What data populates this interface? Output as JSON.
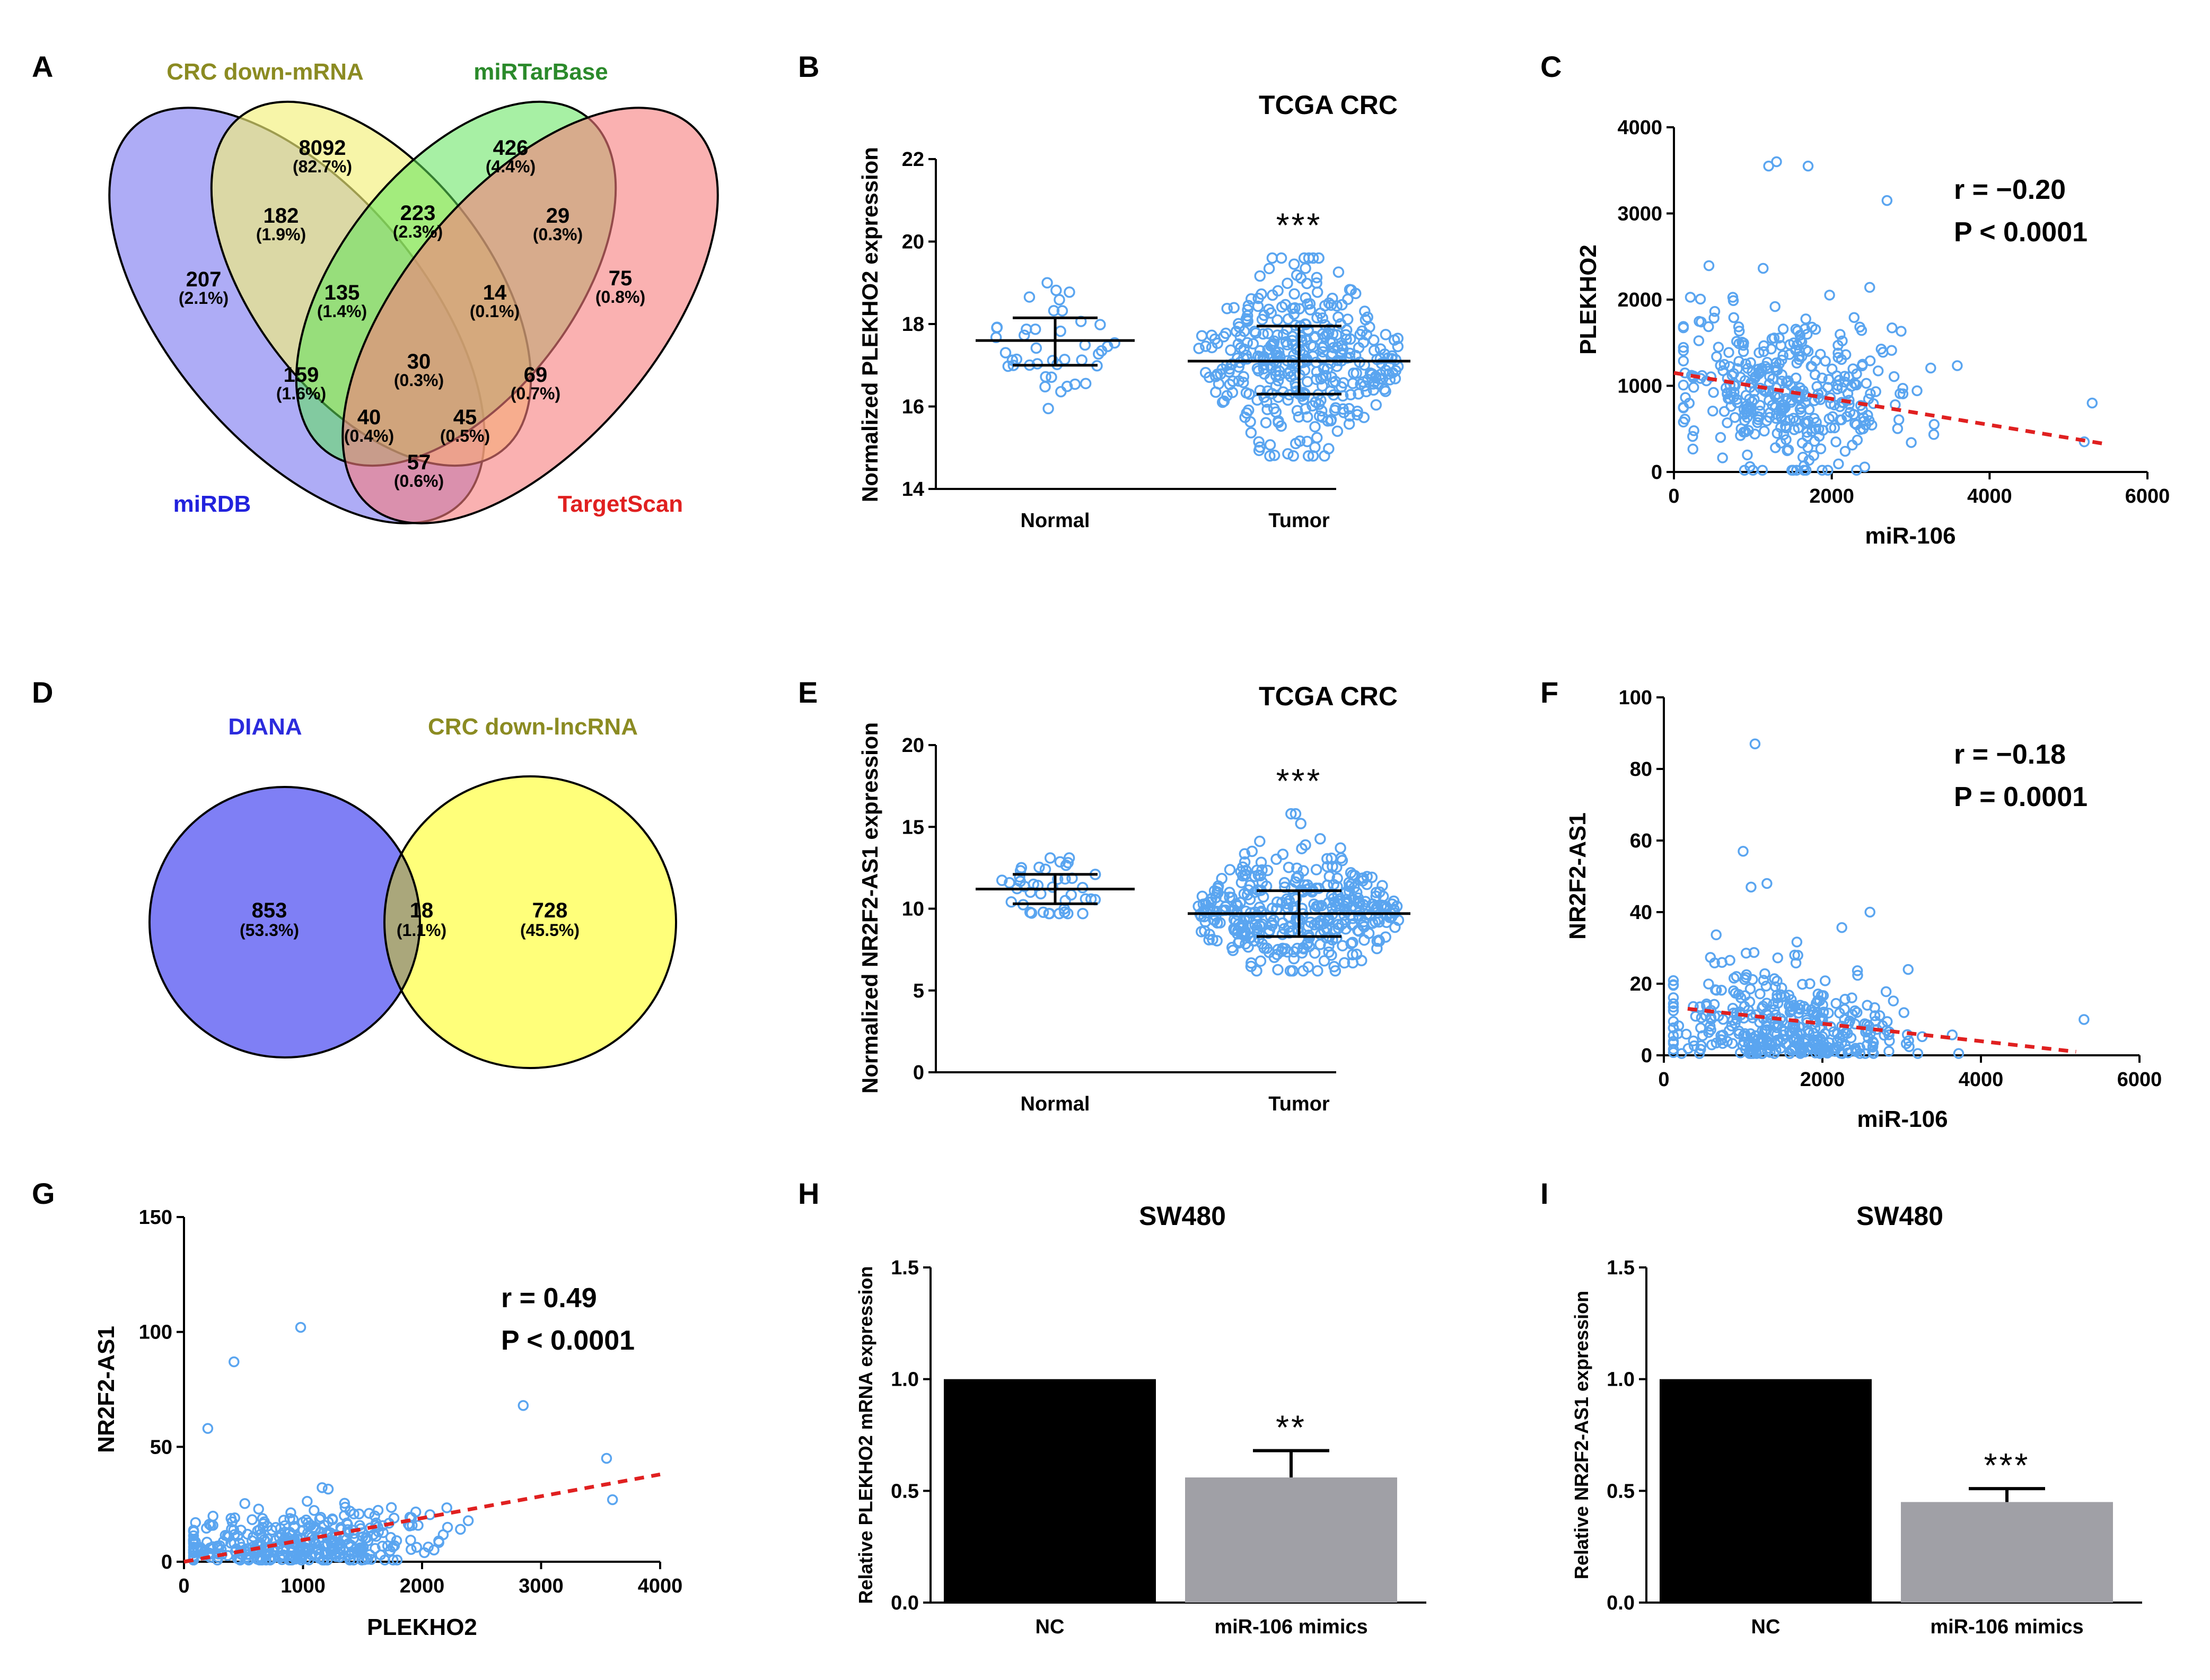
{
  "panels": {
    "A": {
      "label": "A",
      "sets": {
        "crc": "CRC down-mRNA",
        "mirtar": "miRTarBase",
        "mirdb": "miRDB",
        "targetscan": "TargetScan"
      },
      "colors": {
        "crc": "#f2f07a",
        "mirtar": "#5fe35a",
        "mirdb": "#8f8cf2",
        "targetscan": "#f77d7d",
        "crc_label": "#8b8b22",
        "mirtar_label": "#2b8a2b",
        "mirdb_label": "#2222dd",
        "targetscan_label": "#e02020"
      },
      "regions": [
        {
          "key": "crc_only",
          "n": "8092",
          "p": "(82.7%)"
        },
        {
          "key": "mirtar_only",
          "n": "426",
          "p": "(4.4%)"
        },
        {
          "key": "mirdb_only",
          "n": "207",
          "p": "(2.1%)"
        },
        {
          "key": "ts_only",
          "n": "75",
          "p": "(0.8%)"
        },
        {
          "key": "crc_mirdb",
          "n": "182",
          "p": "(1.9%)"
        },
        {
          "key": "crc_mirtar",
          "n": "223",
          "p": "(2.3%)"
        },
        {
          "key": "mirtar_ts",
          "n": "29",
          "p": "(0.3%)"
        },
        {
          "key": "crc_mirtar_mirdb",
          "n": "135",
          "p": "(1.4%)"
        },
        {
          "key": "crc_mirtar_ts",
          "n": "14",
          "p": "(0.1%)"
        },
        {
          "key": "all_four",
          "n": "30",
          "p": "(0.3%)"
        },
        {
          "key": "mirtar_mirdb",
          "n": "159",
          "p": "(1.6%)"
        },
        {
          "key": "crc_ts",
          "n": "69",
          "p": "(0.7%)"
        },
        {
          "key": "mirtar_mirdb_ts",
          "n": "40",
          "p": "(0.4%)"
        },
        {
          "key": "crc_mirdb_ts",
          "n": "45",
          "p": "(0.5%)"
        },
        {
          "key": "mirdb_ts",
          "n": "57",
          "p": "(0.6%)"
        }
      ]
    },
    "D": {
      "label": "D",
      "sets": {
        "diana": "DIANA",
        "lnc": "CRC down-lncRNA"
      },
      "colors": {
        "diana": "#7f7ff5",
        "lnc": "#ffff7a",
        "overlap": "#aaa77b",
        "diana_label": "#2b2bdd",
        "lnc_label": "#8b8b22"
      },
      "regions": [
        {
          "key": "diana_only",
          "n": "853",
          "p": "(53.3%)"
        },
        {
          "key": "both",
          "n": "18",
          "p": "(1.1%)"
        },
        {
          "key": "lnc_only",
          "n": "728",
          "p": "(45.5%)"
        }
      ]
    }
  },
  "chart_data": [
    {
      "id": "B",
      "label": "B",
      "type": "scatter",
      "subtype": "dot-plot",
      "title": "TCGA CRC",
      "ylabel": "Normalized PLEKHO2 expression",
      "xlabel": "",
      "categories": [
        "Normal",
        "Tumor"
      ],
      "ylim": [
        14,
        22
      ],
      "yticks": [
        14,
        16,
        18,
        20,
        22
      ],
      "series": [
        {
          "name": "Normal",
          "mean": 17.6,
          "sd_low": 17.0,
          "sd_high": 18.15,
          "min": 15.95,
          "max": 19.0,
          "n": 40
        },
        {
          "name": "Tumor",
          "mean": 17.1,
          "sd_low": 16.3,
          "sd_high": 17.95,
          "min": 14.8,
          "max": 19.6,
          "n": 380
        }
      ],
      "significance": "***",
      "color": "#5aa5f0"
    },
    {
      "id": "C",
      "label": "C",
      "type": "scatter",
      "title": "",
      "xlabel": "miR-106",
      "ylabel": "PLEKHO2",
      "xlim": [
        0,
        6000
      ],
      "ylim": [
        0,
        4000
      ],
      "xticks": [
        0,
        2000,
        4000,
        6000
      ],
      "yticks": [
        0,
        1000,
        2000,
        3000,
        4000
      ],
      "stats": {
        "r": "r = −0.20",
        "p": "P < 0.0001"
      },
      "fit": {
        "x": [
          0,
          5500
        ],
        "y": [
          1150,
          320
        ]
      },
      "cloud": {
        "n": 380,
        "x_center": 1500,
        "x_spread": 700,
        "y_center": 900,
        "y_spread": 600
      },
      "highlight_points": [
        {
          "x": 1200,
          "y": 3550
        },
        {
          "x": 1300,
          "y": 3600
        },
        {
          "x": 1700,
          "y": 3550
        },
        {
          "x": 2700,
          "y": 3150
        },
        {
          "x": 5300,
          "y": 800
        },
        {
          "x": 5200,
          "y": 350
        }
      ],
      "color": "#5aa5f0",
      "fit_color": "#e02020"
    },
    {
      "id": "E",
      "label": "E",
      "type": "scatter",
      "subtype": "dot-plot",
      "title": "TCGA CRC",
      "ylabel": "Normalized NR2F2-AS1 expression",
      "xlabel": "",
      "categories": [
        "Normal",
        "Tumor"
      ],
      "ylim": [
        0,
        20
      ],
      "yticks": [
        0,
        5,
        10,
        15,
        20
      ],
      "series": [
        {
          "name": "Normal",
          "mean": 11.2,
          "sd_low": 10.3,
          "sd_high": 12.1,
          "min": 9.7,
          "max": 13.1,
          "n": 40
        },
        {
          "name": "Tumor",
          "mean": 9.7,
          "sd_low": 8.3,
          "sd_high": 11.1,
          "min": 6.2,
          "max": 15.8,
          "n": 380
        }
      ],
      "significance": "***",
      "color": "#5aa5f0"
    },
    {
      "id": "F",
      "label": "F",
      "type": "scatter",
      "title": "",
      "xlabel": "miR-106",
      "ylabel": "NR2F2-AS1",
      "xlim": [
        0,
        6000
      ],
      "ylim": [
        0,
        100
      ],
      "xticks": [
        0,
        2000,
        4000,
        6000
      ],
      "yticks": [
        0,
        20,
        40,
        60,
        80,
        100
      ],
      "stats": {
        "r": "r = −0.18",
        "p": "P = 0.0001"
      },
      "fit": {
        "x": [
          300,
          5200
        ],
        "y": [
          13,
          1
        ]
      },
      "cloud": {
        "n": 380,
        "x_center": 1600,
        "x_spread": 750,
        "y_center": 9,
        "y_spread": 9
      },
      "highlight_points": [
        {
          "x": 1150,
          "y": 87
        },
        {
          "x": 1000,
          "y": 57
        },
        {
          "x": 1100,
          "y": 47
        },
        {
          "x": 1300,
          "y": 48
        },
        {
          "x": 2600,
          "y": 40
        },
        {
          "x": 5300,
          "y": 10
        }
      ],
      "color": "#5aa5f0",
      "fit_color": "#e02020"
    },
    {
      "id": "G",
      "label": "G",
      "type": "scatter",
      "title": "",
      "xlabel": "PLEKHO2",
      "ylabel": "NR2F2-AS1",
      "xlim": [
        0,
        4000
      ],
      "ylim": [
        0,
        150
      ],
      "xticks": [
        0,
        1000,
        2000,
        3000,
        4000
      ],
      "yticks": [
        0,
        50,
        100,
        150
      ],
      "stats": {
        "r": "r = 0.49",
        "p": "P < 0.0001"
      },
      "fit": {
        "x": [
          0,
          4000
        ],
        "y": [
          0,
          38
        ]
      },
      "cloud": {
        "n": 380,
        "x_center": 900,
        "x_spread": 550,
        "y_center": 9,
        "y_spread": 9
      },
      "highlight_points": [
        {
          "x": 980,
          "y": 102
        },
        {
          "x": 420,
          "y": 87
        },
        {
          "x": 200,
          "y": 58
        },
        {
          "x": 2850,
          "y": 68
        },
        {
          "x": 3550,
          "y": 45
        },
        {
          "x": 3600,
          "y": 27
        }
      ],
      "color": "#5aa5f0",
      "fit_color": "#e02020"
    },
    {
      "id": "H",
      "label": "H",
      "type": "bar",
      "title": "SW480",
      "ylabel": "Relative PLEKHO2 mRNA expression",
      "xlabel": "",
      "categories": [
        "NC",
        "miR-106 mimics"
      ],
      "values": [
        1.0,
        0.56
      ],
      "errors": [
        0,
        0.12
      ],
      "colors": [
        "#000000",
        "#a0a0a6"
      ],
      "ylim": [
        0,
        1.5
      ],
      "yticks": [
        "0.0",
        "0.5",
        "1.0",
        "1.5"
      ],
      "significance": "**"
    },
    {
      "id": "I",
      "label": "I",
      "type": "bar",
      "title": "SW480",
      "ylabel": "Relative NR2F2-AS1 expression",
      "xlabel": "",
      "categories": [
        "NC",
        "miR-106 mimics"
      ],
      "values": [
        1.0,
        0.45
      ],
      "errors": [
        0,
        0.06
      ],
      "colors": [
        "#000000",
        "#a0a0a6"
      ],
      "ylim": [
        0,
        1.5
      ],
      "yticks": [
        "0.0",
        "0.5",
        "1.0",
        "1.5"
      ],
      "significance": "***"
    }
  ]
}
